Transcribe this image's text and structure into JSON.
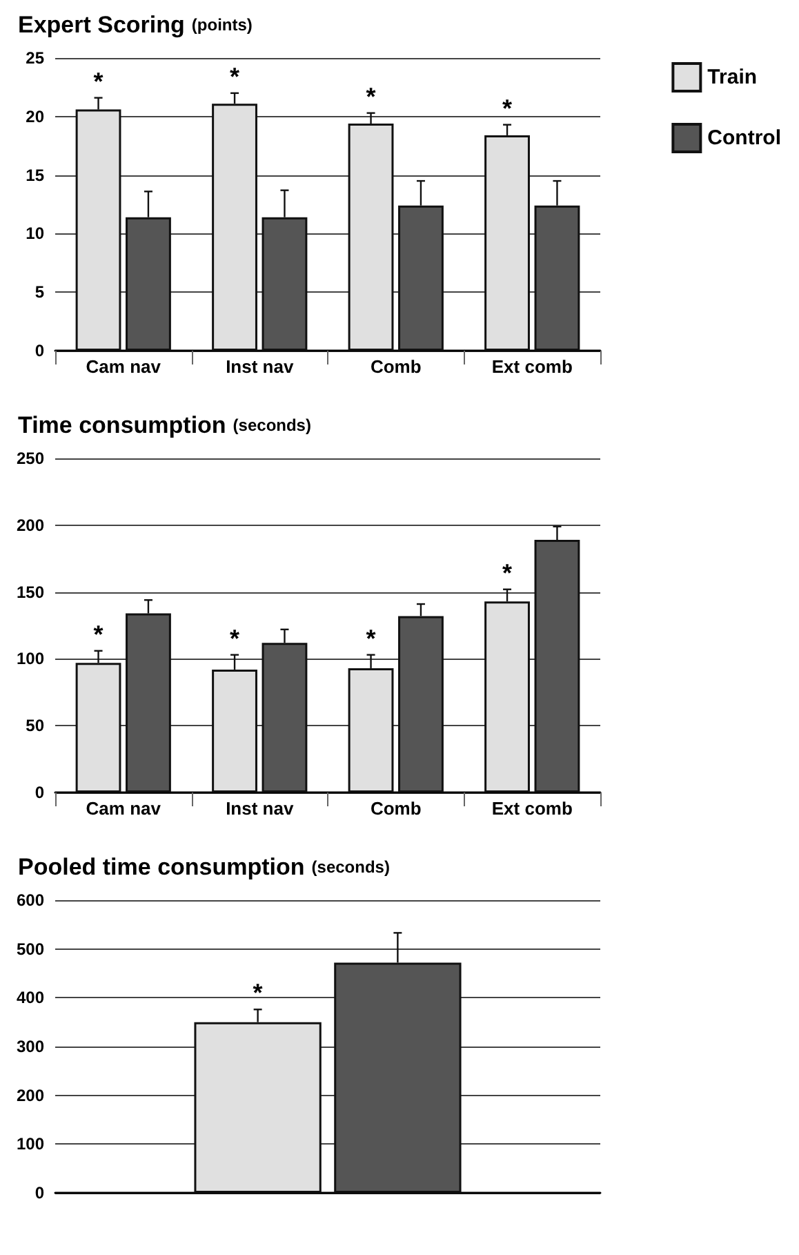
{
  "chart_data": [
    {
      "type": "bar",
      "title": "Expert Scoring",
      "subtitle": "(points)",
      "categories": [
        "Cam nav",
        "Inst nav",
        "Comb",
        "Ext comb"
      ],
      "series": [
        {
          "name": "Train",
          "color": "#e0e0e0",
          "values": [
            20.6,
            21.1,
            19.4,
            18.4
          ],
          "errors": [
            1.0,
            0.9,
            0.9,
            0.9
          ]
        },
        {
          "name": "Control",
          "color": "#555555",
          "values": [
            11.4,
            11.4,
            12.4,
            12.4
          ],
          "errors": [
            2.2,
            2.3,
            2.1,
            2.1
          ]
        }
      ],
      "ylim": [
        0,
        25
      ],
      "yticks": [
        0,
        5,
        10,
        15,
        20,
        25
      ],
      "grid": "y",
      "legend": "right",
      "annotations": [
        {
          "text": "*",
          "x": "Cam nav",
          "y": 20.6
        },
        {
          "text": "*",
          "x": "Inst nav",
          "y": 21.1
        },
        {
          "text": "*",
          "x": "Comb",
          "y": 19.4
        },
        {
          "text": "*",
          "x": "Ext comb",
          "y": 18.4
        }
      ]
    },
    {
      "type": "bar",
      "title": "Time consumption",
      "subtitle": "(seconds)",
      "categories": [
        "Cam nav",
        "Inst nav",
        "Comb",
        "Ext comb"
      ],
      "series": [
        {
          "color": "#e0e0e0",
          "values": [
            97,
            92,
            93,
            143
          ],
          "errors": [
            9,
            11,
            10,
            9
          ]
        },
        {
          "color": "#555555",
          "values": [
            134,
            112,
            132,
            189
          ],
          "errors": [
            10,
            10,
            9,
            10
          ]
        }
      ],
      "ylim": [
        0,
        250
      ],
      "yticks": [
        0,
        50,
        100,
        150,
        200,
        250
      ],
      "grid": "y",
      "annotations": [
        {
          "text": "*",
          "x": "Cam nav",
          "y": 97
        },
        {
          "text": "*",
          "x": "Inst nav",
          "y": 92
        },
        {
          "text": "*",
          "x": "Comb",
          "y": 93
        },
        {
          "text": "*",
          "x": "Ext comb",
          "y": 143
        }
      ]
    },
    {
      "type": "bar",
      "title": "Pooled time consumption",
      "subtitle": "(seconds)",
      "categories": [
        null
      ],
      "series": [
        {
          "color": "#e0e0e0",
          "values": [
            350
          ],
          "errors": [
            26
          ]
        },
        {
          "color": "#555555",
          "values": [
            472
          ],
          "errors": [
            61
          ]
        }
      ],
      "ylim": [
        0,
        600
      ],
      "yticks": [
        0,
        100,
        200,
        300,
        400,
        500,
        600
      ],
      "grid": "y",
      "annotations": [
        {
          "text": "*",
          "y": 350
        }
      ]
    }
  ]
}
